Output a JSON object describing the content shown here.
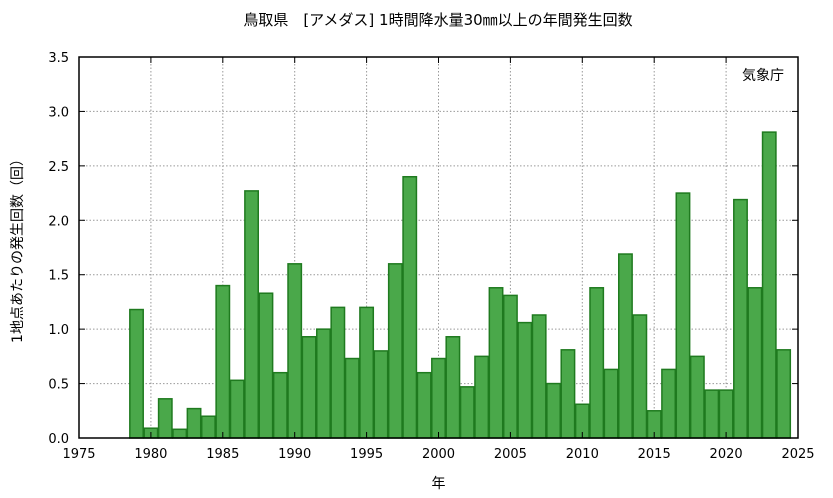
{
  "chart_data": {
    "type": "bar",
    "title": "鳥取県　[アメダス] 1時間降水量30㎜以上の年間発生回数",
    "xlabel": "年",
    "ylabel": "1地点あたりの発生回数（回）",
    "credit": "気象庁",
    "xlim": [
      1975,
      2025
    ],
    "ylim": [
      0,
      3.5
    ],
    "x_ticks": [
      "1975",
      "1980",
      "1985",
      "1990",
      "1995",
      "2000",
      "2005",
      "2010",
      "2015",
      "2020",
      "2025"
    ],
    "y_ticks": [
      "0.0",
      "0.5",
      "1.0",
      "1.5",
      "2.0",
      "2.5",
      "3.0",
      "3.5"
    ],
    "grid": true,
    "bar_color": "#4aa84a",
    "bar_edge_color": "#1f7a1f",
    "x": [
      1979,
      1980,
      1981,
      1982,
      1983,
      1984,
      1985,
      1986,
      1987,
      1988,
      1989,
      1990,
      1991,
      1992,
      1993,
      1994,
      1995,
      1996,
      1997,
      1998,
      1999,
      2000,
      2001,
      2002,
      2003,
      2004,
      2005,
      2006,
      2007,
      2008,
      2009,
      2010,
      2011,
      2012,
      2013,
      2014,
      2015,
      2016,
      2017,
      2018,
      2019,
      2020,
      2021,
      2022,
      2023,
      2024
    ],
    "values": [
      1.18,
      0.09,
      0.36,
      0.08,
      0.27,
      0.2,
      1.4,
      0.53,
      2.27,
      1.33,
      0.6,
      1.6,
      0.93,
      1.0,
      1.2,
      0.73,
      1.2,
      0.8,
      1.6,
      2.4,
      0.6,
      0.73,
      0.93,
      0.47,
      0.75,
      1.38,
      1.31,
      1.06,
      1.13,
      0.5,
      0.81,
      0.31,
      1.38,
      0.63,
      1.69,
      1.13,
      0.25,
      0.63,
      2.25,
      0.75,
      0.44,
      0.44,
      2.19,
      1.38,
      2.81,
      0.81
    ]
  }
}
